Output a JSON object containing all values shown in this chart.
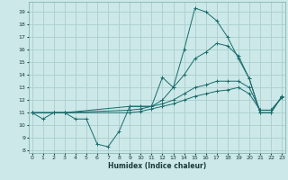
{
  "title": "",
  "xlabel": "Humidex (Indice chaleur)",
  "bg_color": "#cce8e8",
  "grid_color": "#aacece",
  "line_color": "#1a6b6b",
  "x_ticks": [
    0,
    1,
    2,
    3,
    4,
    5,
    6,
    7,
    8,
    9,
    10,
    11,
    12,
    13,
    14,
    15,
    16,
    17,
    18,
    19,
    20,
    21,
    22,
    23
  ],
  "y_ticks": [
    8,
    9,
    10,
    11,
    12,
    13,
    14,
    15,
    16,
    17,
    18,
    19
  ],
  "xlim": [
    -0.3,
    23.3
  ],
  "ylim": [
    7.8,
    19.8
  ],
  "lines": [
    {
      "x": [
        0,
        1,
        2,
        3,
        4,
        5,
        6,
        7,
        8,
        9,
        10,
        11,
        12,
        13,
        14,
        15,
        16,
        17,
        18,
        19,
        20,
        21,
        22,
        23
      ],
      "y": [
        11.0,
        10.5,
        11.0,
        11.0,
        10.5,
        10.5,
        8.5,
        8.3,
        9.5,
        11.5,
        11.5,
        11.5,
        13.8,
        13.0,
        16.0,
        19.3,
        19.0,
        18.3,
        17.0,
        15.3,
        13.7,
        11.0,
        11.0,
        12.3
      ]
    },
    {
      "x": [
        0,
        2,
        3,
        9,
        10,
        11,
        12,
        13,
        14,
        15,
        16,
        17,
        18,
        19,
        20,
        21,
        22,
        23
      ],
      "y": [
        11.0,
        11.0,
        11.0,
        11.5,
        11.5,
        11.5,
        12.0,
        13.0,
        14.0,
        15.3,
        15.8,
        16.5,
        16.3,
        15.5,
        13.7,
        11.0,
        11.0,
        12.3
      ]
    },
    {
      "x": [
        0,
        2,
        3,
        9,
        10,
        11,
        12,
        13,
        14,
        15,
        16,
        17,
        18,
        19,
        20,
        21,
        22,
        23
      ],
      "y": [
        11.0,
        11.0,
        11.0,
        11.2,
        11.3,
        11.5,
        11.7,
        12.0,
        12.5,
        13.0,
        13.2,
        13.5,
        13.5,
        13.5,
        13.0,
        11.2,
        11.2,
        12.2
      ]
    },
    {
      "x": [
        0,
        2,
        3,
        9,
        10,
        11,
        12,
        13,
        14,
        15,
        16,
        17,
        18,
        19,
        20,
        21,
        22,
        23
      ],
      "y": [
        11.0,
        11.0,
        11.0,
        11.0,
        11.1,
        11.3,
        11.5,
        11.7,
        12.0,
        12.3,
        12.5,
        12.7,
        12.8,
        13.0,
        12.5,
        11.2,
        11.2,
        12.2
      ]
    }
  ]
}
